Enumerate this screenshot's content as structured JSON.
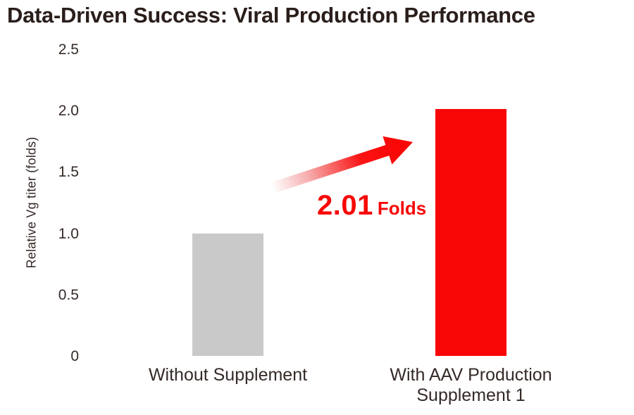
{
  "colors": {
    "background": "#FFFFFF",
    "accent_red": "#F90606",
    "bar_gray": "#C9C9C9",
    "text_dark": "#2A1E1B",
    "text_medium": "#342A27"
  },
  "chart_data": {
    "type": "bar",
    "title": "Data-Driven Success: Viral Production Performance",
    "xlabel": "",
    "ylabel": "Relative Vg titer (folds)",
    "categories": [
      "Without Supplement",
      "With AAV Production Supplement 1"
    ],
    "categories_lines": [
      [
        "Without Supplement"
      ],
      [
        "With AAV Production",
        "Supplement 1"
      ]
    ],
    "values": [
      1.0,
      2.01
    ],
    "bar_colors": [
      "#C9C9C9",
      "#F90606"
    ],
    "ylim": [
      0,
      2.5
    ],
    "yticks": [
      0,
      0.5,
      1,
      1.5,
      2,
      2.5
    ],
    "ytick_labels": [
      "0",
      "0.5",
      "1.0",
      "1.5",
      "2.0",
      "2.5"
    ],
    "grid": false,
    "legend": "none",
    "axis_lines": false,
    "annotation": {
      "value": "2.01",
      "unit": "Folds",
      "description": "red gradient arrow pointing up-right toward the taller bar"
    }
  },
  "arrow": {
    "gradient_stops": [
      "#FFFFFF",
      "#F6A8A8",
      "#FA1414",
      "#F90606"
    ]
  }
}
